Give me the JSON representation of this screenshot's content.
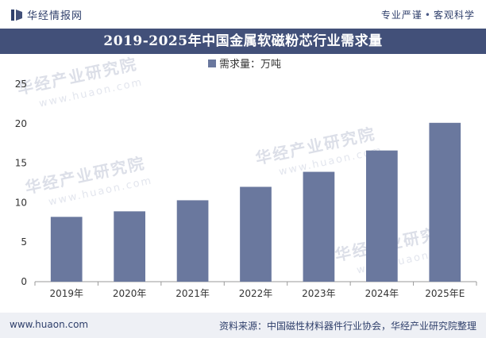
{
  "header": {
    "logo_text": "华经情报网",
    "slogan_left": "专业严谨",
    "slogan_right": "客观科学"
  },
  "watermark": {
    "brand": "华经产业研究院",
    "url": "www.huaon.com"
  },
  "chart_data": {
    "type": "bar",
    "title": "2019-2025年中国金属软磁粉芯行业需求量",
    "categories": [
      "2019年",
      "2020年",
      "2021年",
      "2022年",
      "2023年",
      "2024年",
      "2025年E"
    ],
    "series": [
      {
        "name": "需求量：万吨",
        "values": [
          8.2,
          8.9,
          10.3,
          12.0,
          13.9,
          16.6,
          20.1
        ],
        "color": "#6a789e"
      }
    ],
    "ylim": [
      0,
      25
    ],
    "yticks": [
      0,
      5,
      10,
      15,
      20,
      25
    ],
    "xlabel": "",
    "ylabel": "",
    "grid": false,
    "legend": "top-center"
  },
  "footer": {
    "url": "www.huaon.com",
    "source": "资料来源：中国磁性材料器件行业协会，华经产业研究院整理"
  }
}
